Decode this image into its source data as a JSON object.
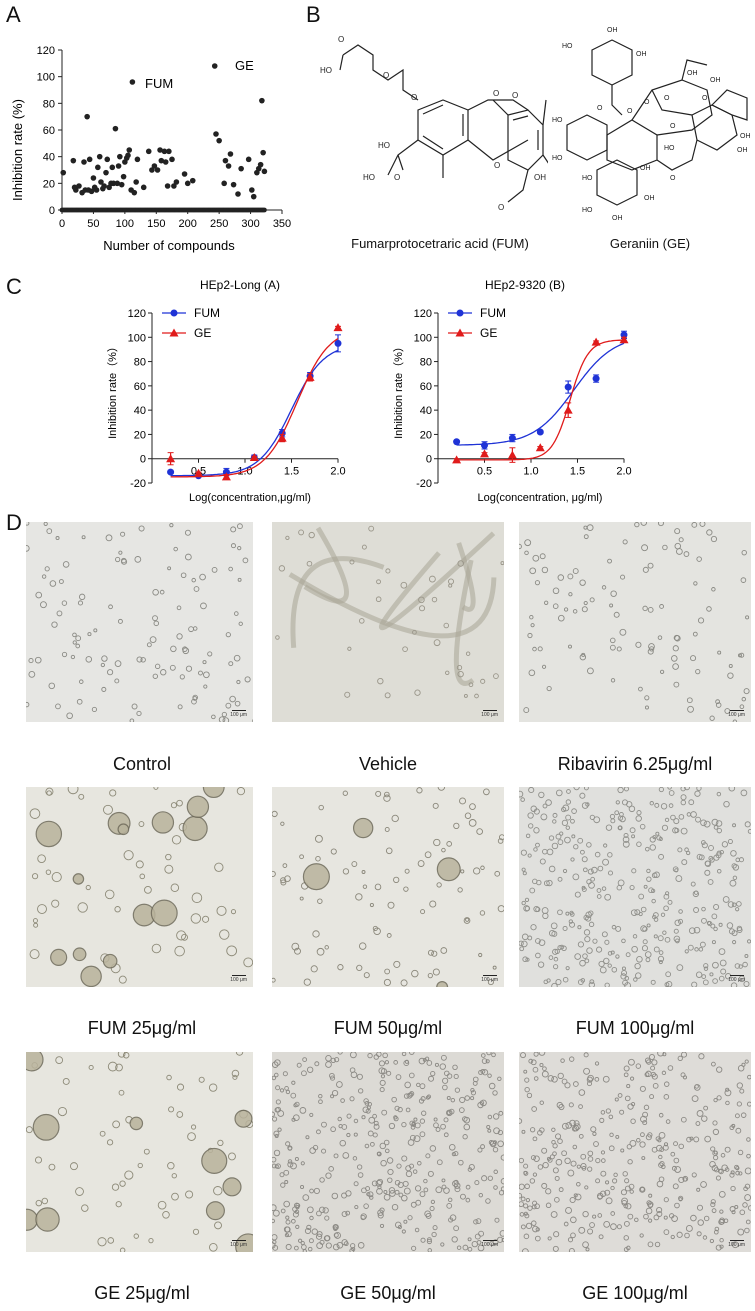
{
  "panels": {
    "a": "A",
    "b": "B",
    "c": "C",
    "d": "D"
  },
  "panel_a": {
    "ylabel": "Inhibition rate (%)",
    "xlabel": "Number of compounds",
    "yticks": [
      "0",
      "20",
      "40",
      "60",
      "80",
      "100",
      "120"
    ],
    "xticks": [
      "0",
      "50",
      "100",
      "150",
      "200",
      "250",
      "300",
      "350"
    ],
    "annotations": {
      "fum": "FUM",
      "ge": "GE"
    }
  },
  "panel_b": {
    "fum_caption": "Fumarprotocetraric acid (FUM)",
    "ge_caption": "Geraniin (GE)",
    "fum_atoms": [
      "O",
      "HO",
      "O",
      "O",
      "O",
      "O",
      "O",
      "HO",
      "OH",
      "HO",
      "O",
      "O",
      "OH"
    ],
    "ge_atoms": [
      "HO",
      "OH",
      "OH",
      "O",
      "O",
      "OH",
      "HO",
      "HO",
      "O",
      "O",
      "O",
      "O",
      "O",
      "HO",
      "OH",
      "OH",
      "HO",
      "OH",
      "OH",
      "HO",
      "OH",
      "OH"
    ]
  },
  "panel_c": {
    "left": {
      "title": "HEp2-Long (A)",
      "xlabel": "Log(concentration,μg/ml)",
      "ylabel": "Inhibition rate（%）",
      "xticks": [
        "0.5",
        "1.0",
        "1.5",
        "2.0"
      ],
      "yticks": [
        "-20",
        "0",
        "20",
        "40",
        "60",
        "80",
        "100",
        "120"
      ]
    },
    "right": {
      "title": "HEp2-9320 (B)",
      "xlabel": "Log(concentration, μg/ml)",
      "ylabel": "Inhibition rate（%）",
      "xticks": [
        "0.5",
        "1.0",
        "1.5",
        "2.0"
      ],
      "yticks": [
        "-20",
        "0",
        "20",
        "40",
        "60",
        "80",
        "100",
        "120"
      ]
    },
    "legend": [
      "FUM",
      "GE"
    ]
  },
  "panel_d": {
    "captions": [
      "Control",
      "Vehicle",
      "Ribavirin 6.25μg/ml",
      "FUM 25μg/ml",
      "FUM 50μg/ml",
      "FUM 100μg/ml",
      "GE 25μg/ml",
      "GE 50μg/ml",
      "GE 100μg/ml"
    ],
    "scale_label": "100 μm"
  },
  "colors": {
    "fum": "#1f33d6",
    "ge": "#e01b1b",
    "dots": "#222222"
  },
  "chart_data": [
    {
      "type": "scatter",
      "xlabel": "Number of compounds",
      "ylabel": "Inhibition rate (%)",
      "xlim": [
        0,
        350
      ],
      "ylim": [
        0,
        120
      ],
      "grid": false,
      "annotations": [
        {
          "text": "FUM",
          "x": 112,
          "y": 96
        },
        {
          "text": "GE",
          "x": 243,
          "y": 108
        }
      ],
      "points": [
        [
          2,
          28
        ],
        [
          18,
          37
        ],
        [
          20,
          17
        ],
        [
          22,
          15
        ],
        [
          27,
          18
        ],
        [
          32,
          13
        ],
        [
          35,
          36
        ],
        [
          37,
          15
        ],
        [
          40,
          70
        ],
        [
          42,
          15
        ],
        [
          44,
          38
        ],
        [
          47,
          14
        ],
        [
          50,
          24
        ],
        [
          52,
          17
        ],
        [
          55,
          15
        ],
        [
          57,
          32
        ],
        [
          60,
          40
        ],
        [
          62,
          21
        ],
        [
          65,
          16
        ],
        [
          67,
          18
        ],
        [
          70,
          28
        ],
        [
          72,
          38
        ],
        [
          75,
          17
        ],
        [
          78,
          20
        ],
        [
          80,
          32
        ],
        [
          82,
          20
        ],
        [
          85,
          61
        ],
        [
          88,
          20
        ],
        [
          90,
          33
        ],
        [
          92,
          40
        ],
        [
          95,
          19
        ],
        [
          98,
          25
        ],
        [
          100,
          36
        ],
        [
          103,
          39
        ],
        [
          105,
          41
        ],
        [
          107,
          45
        ],
        [
          110,
          15
        ],
        [
          112,
          96
        ],
        [
          115,
          13
        ],
        [
          118,
          21
        ],
        [
          120,
          38
        ],
        [
          130,
          17
        ],
        [
          138,
          44
        ],
        [
          143,
          30
        ],
        [
          147,
          33
        ],
        [
          152,
          30
        ],
        [
          156,
          45
        ],
        [
          158,
          37
        ],
        [
          163,
          44
        ],
        [
          165,
          36
        ],
        [
          168,
          18
        ],
        [
          170,
          44
        ],
        [
          175,
          38
        ],
        [
          178,
          18
        ],
        [
          182,
          21
        ],
        [
          195,
          27
        ],
        [
          200,
          20
        ],
        [
          208,
          22
        ],
        [
          243,
          108
        ],
        [
          245,
          57
        ],
        [
          250,
          52
        ],
        [
          258,
          20
        ],
        [
          260,
          37
        ],
        [
          265,
          33
        ],
        [
          268,
          42
        ],
        [
          273,
          19
        ],
        [
          280,
          12
        ],
        [
          285,
          31
        ],
        [
          297,
          38
        ],
        [
          302,
          15
        ],
        [
          305,
          10
        ],
        [
          310,
          28
        ],
        [
          313,
          31
        ],
        [
          316,
          34
        ],
        [
          318,
          82
        ],
        [
          320,
          43
        ],
        [
          322,
          29
        ]
      ],
      "zero_points": {
        "from": 0,
        "to": 322,
        "y": 0
      }
    },
    {
      "type": "line",
      "title": "HEp2-Long (A)",
      "xlabel": "Log(concentration,μg/ml)",
      "ylabel": "Inhibition rate（%）",
      "xlim": [
        0,
        2
      ],
      "ylim": [
        -20,
        120
      ],
      "series": [
        {
          "name": "FUM",
          "x": [
            0.2,
            0.5,
            0.8,
            1.1,
            1.4,
            1.7,
            2.0
          ],
          "y": [
            -11,
            -14,
            -11,
            1,
            21,
            68,
            95
          ],
          "err": [
            1,
            1,
            3,
            2,
            3,
            3,
            7
          ]
        },
        {
          "name": "GE",
          "x": [
            0.2,
            0.5,
            0.8,
            1.1,
            1.4,
            1.7,
            2.0
          ],
          "y": [
            0,
            -12,
            -15,
            1,
            17,
            67,
            108
          ],
          "err": [
            5,
            1,
            2,
            1,
            3,
            3,
            1
          ]
        }
      ]
    },
    {
      "type": "line",
      "title": "HEp2-9320 (B)",
      "xlabel": "Log(concentration, μg/ml)",
      "ylabel": "Inhibition rate（%）",
      "xlim": [
        0,
        2
      ],
      "ylim": [
        -20,
        120
      ],
      "series": [
        {
          "name": "FUM",
          "x": [
            0.2,
            0.5,
            0.8,
            1.1,
            1.4,
            1.7,
            2.0
          ],
          "y": [
            14,
            11,
            17,
            22,
            59,
            66,
            102
          ],
          "err": [
            1,
            3,
            3,
            1,
            5,
            3,
            3
          ]
        },
        {
          "name": "GE",
          "x": [
            0.2,
            0.5,
            0.8,
            1.1,
            1.4,
            1.7,
            2.0
          ],
          "y": [
            -1,
            4,
            3,
            9,
            40,
            96,
            98
          ],
          "err": [
            1,
            1,
            6,
            1,
            6,
            1,
            2
          ]
        }
      ]
    }
  ]
}
